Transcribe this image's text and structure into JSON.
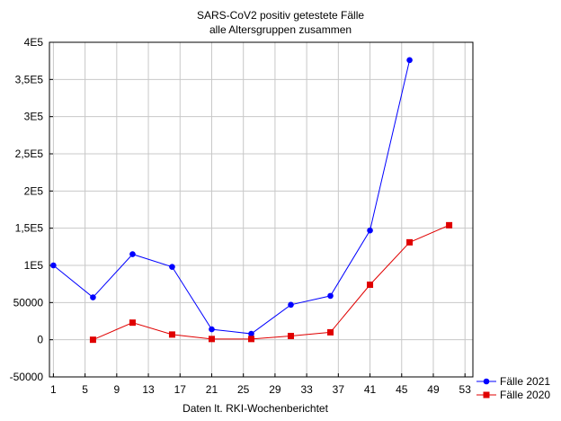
{
  "chart_data": {
    "type": "line",
    "title": "SARS-CoV2 positiv getestete Fälle",
    "subtitle": "alle Altersgruppen zusammen",
    "xlabel": "Daten lt. RKI-Wochenberichtet",
    "ylabel": "",
    "xlim": [
      0.5,
      54
    ],
    "ylim": [
      -50000,
      400000
    ],
    "xticks": [
      1,
      5,
      9,
      13,
      17,
      21,
      25,
      29,
      33,
      37,
      41,
      45,
      49,
      53
    ],
    "yticks": [
      -50000,
      0,
      50000,
      100000,
      150000,
      200000,
      250000,
      300000,
      350000,
      400000
    ],
    "ytick_labels": [
      "-50000",
      "0",
      "50000",
      "1E5",
      "1,5E5",
      "2E5",
      "2,5E5",
      "3E5",
      "3,5E5",
      "4E5"
    ],
    "grid": true,
    "legend_position": "bottom-right",
    "series": [
      {
        "name": "Fälle 2021",
        "color": "#0000ff",
        "marker": "circle",
        "x": [
          1,
          6,
          11,
          16,
          21,
          26,
          31,
          36,
          41,
          46
        ],
        "y": [
          100000,
          57000,
          115000,
          98000,
          14000,
          8000,
          47000,
          59000,
          147000,
          376000
        ]
      },
      {
        "name": "Fälle 2020",
        "color": "#e00000",
        "marker": "square",
        "x": [
          6,
          11,
          16,
          21,
          26,
          31,
          36,
          41,
          46,
          51
        ],
        "y": [
          0,
          23000,
          7000,
          1000,
          1000,
          5000,
          10000,
          74000,
          131000,
          154000
        ]
      }
    ]
  }
}
